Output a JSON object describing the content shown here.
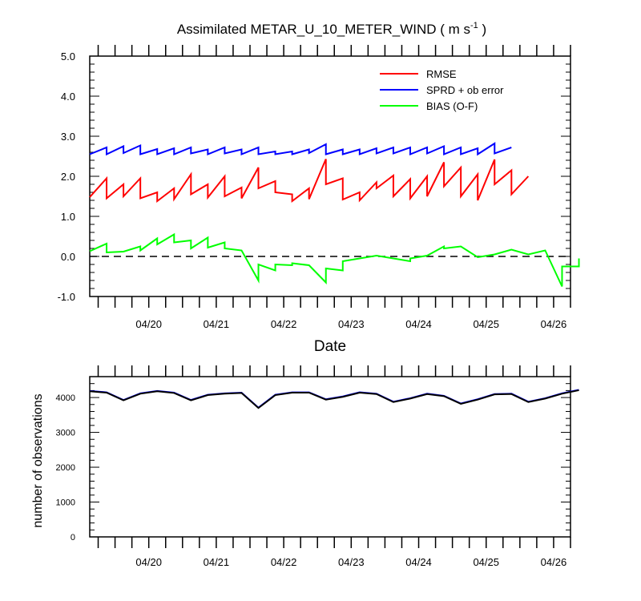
{
  "chart_data": [
    {
      "type": "line",
      "title_main": "Assimilated METAR_U_10_METER_WIND ( m s",
      "title_sup": "-1",
      "title_end": " )",
      "xlabel": "Date",
      "ylabel": "",
      "ylim": [
        -1.0,
        5.0
      ],
      "yticks": [
        "-1.0",
        "0.0",
        "1.0",
        "2.0",
        "3.0",
        "4.0",
        "5.0"
      ],
      "xlim": [
        "04/19 03:00",
        "04/26 06:00"
      ],
      "xticks": [
        "04/20",
        "04/21",
        "04/22",
        "04/23",
        "04/24",
        "04/25",
        "04/26"
      ],
      "legend": "top-right",
      "reference_line": 0.0,
      "series": [
        {
          "name": "RMSE",
          "color": "#ff0000",
          "values": [
            [
              0.0,
              1.48
            ],
            [
              0.25,
              1.95
            ],
            [
              0.25,
              1.45
            ],
            [
              0.5,
              1.8
            ],
            [
              0.5,
              1.5
            ],
            [
              0.75,
              1.95
            ],
            [
              0.75,
              1.45
            ],
            [
              1.0,
              1.6
            ],
            [
              1.0,
              1.38
            ],
            [
              1.25,
              1.7
            ],
            [
              1.25,
              1.43
            ],
            [
              1.5,
              2.05
            ],
            [
              1.5,
              1.55
            ],
            [
              1.75,
              1.8
            ],
            [
              1.75,
              1.47
            ],
            [
              2.0,
              2.0
            ],
            [
              2.0,
              1.5
            ],
            [
              2.25,
              1.72
            ],
            [
              2.25,
              1.45
            ],
            [
              2.5,
              2.22
            ],
            [
              2.5,
              1.7
            ],
            [
              2.75,
              1.88
            ],
            [
              2.75,
              1.6
            ],
            [
              3.0,
              1.55
            ],
            [
              3.0,
              1.38
            ],
            [
              3.25,
              1.7
            ],
            [
              3.25,
              1.43
            ],
            [
              3.5,
              2.43
            ],
            [
              3.5,
              1.8
            ],
            [
              3.75,
              1.95
            ],
            [
              3.75,
              1.42
            ],
            [
              4.0,
              1.6
            ],
            [
              4.0,
              1.4
            ],
            [
              4.25,
              1.85
            ],
            [
              4.25,
              1.7
            ],
            [
              4.5,
              2.02
            ],
            [
              4.5,
              1.5
            ],
            [
              4.75,
              1.93
            ],
            [
              4.75,
              1.45
            ],
            [
              5.0,
              2.0
            ],
            [
              5.0,
              1.5
            ],
            [
              5.25,
              2.35
            ],
            [
              5.25,
              1.75
            ],
            [
              5.5,
              2.22
            ],
            [
              5.5,
              1.5
            ],
            [
              5.75,
              2.05
            ],
            [
              5.75,
              1.4
            ],
            [
              6.0,
              2.42
            ],
            [
              6.0,
              1.8
            ],
            [
              6.25,
              2.15
            ],
            [
              6.25,
              1.55
            ],
            [
              6.5,
              2.0
            ]
          ]
        },
        {
          "name": "SPRD + ob error",
          "color": "#0000ff",
          "values": [
            [
              0.0,
              2.55
            ],
            [
              0.25,
              2.72
            ],
            [
              0.25,
              2.55
            ],
            [
              0.5,
              2.75
            ],
            [
              0.5,
              2.58
            ],
            [
              0.75,
              2.77
            ],
            [
              0.75,
              2.55
            ],
            [
              1.0,
              2.68
            ],
            [
              1.0,
              2.55
            ],
            [
              1.25,
              2.7
            ],
            [
              1.25,
              2.55
            ],
            [
              1.5,
              2.72
            ],
            [
              1.5,
              2.57
            ],
            [
              1.75,
              2.67
            ],
            [
              1.75,
              2.55
            ],
            [
              2.0,
              2.72
            ],
            [
              2.0,
              2.57
            ],
            [
              2.25,
              2.67
            ],
            [
              2.25,
              2.55
            ],
            [
              2.5,
              2.72
            ],
            [
              2.5,
              2.55
            ],
            [
              2.75,
              2.62
            ],
            [
              2.75,
              2.55
            ],
            [
              3.0,
              2.62
            ],
            [
              3.0,
              2.55
            ],
            [
              3.25,
              2.67
            ],
            [
              3.25,
              2.58
            ],
            [
              3.5,
              2.8
            ],
            [
              3.5,
              2.55
            ],
            [
              3.75,
              2.67
            ],
            [
              3.75,
              2.55
            ],
            [
              4.0,
              2.67
            ],
            [
              4.0,
              2.55
            ],
            [
              4.25,
              2.7
            ],
            [
              4.25,
              2.57
            ],
            [
              4.5,
              2.72
            ],
            [
              4.5,
              2.57
            ],
            [
              4.75,
              2.72
            ],
            [
              4.75,
              2.55
            ],
            [
              5.0,
              2.72
            ],
            [
              5.0,
              2.57
            ],
            [
              5.25,
              2.75
            ],
            [
              5.25,
              2.55
            ],
            [
              5.5,
              2.72
            ],
            [
              5.5,
              2.55
            ],
            [
              5.75,
              2.7
            ],
            [
              5.75,
              2.55
            ],
            [
              6.0,
              2.82
            ],
            [
              6.0,
              2.57
            ],
            [
              6.25,
              2.72
            ]
          ]
        },
        {
          "name": "BIAS (O-F)",
          "color": "#00ff00",
          "values": [
            [
              0.0,
              0.13
            ],
            [
              0.25,
              0.32
            ],
            [
              0.25,
              0.1
            ],
            [
              0.5,
              0.12
            ],
            [
              0.75,
              0.25
            ],
            [
              0.75,
              0.15
            ],
            [
              1.0,
              0.45
            ],
            [
              1.0,
              0.3
            ],
            [
              1.25,
              0.55
            ],
            [
              1.25,
              0.35
            ],
            [
              1.5,
              0.4
            ],
            [
              1.5,
              0.2
            ],
            [
              1.75,
              0.47
            ],
            [
              1.75,
              0.22
            ],
            [
              2.0,
              0.35
            ],
            [
              2.0,
              0.2
            ],
            [
              2.25,
              0.15
            ],
            [
              2.5,
              -0.6
            ],
            [
              2.5,
              -0.2
            ],
            [
              2.75,
              -0.35
            ],
            [
              2.75,
              -0.2
            ],
            [
              3.0,
              -0.22
            ],
            [
              3.0,
              -0.17
            ],
            [
              3.25,
              -0.22
            ],
            [
              3.5,
              -0.65
            ],
            [
              3.5,
              -0.3
            ],
            [
              3.75,
              -0.35
            ],
            [
              3.75,
              -0.12
            ],
            [
              4.0,
              -0.05
            ],
            [
              4.25,
              0.02
            ],
            [
              4.5,
              -0.05
            ],
            [
              4.75,
              -0.12
            ],
            [
              4.75,
              -0.05
            ],
            [
              5.0,
              0.02
            ],
            [
              5.25,
              0.25
            ],
            [
              5.25,
              0.2
            ],
            [
              5.5,
              0.25
            ],
            [
              5.75,
              -0.02
            ],
            [
              6.0,
              0.05
            ],
            [
              6.25,
              0.17
            ],
            [
              6.5,
              0.05
            ],
            [
              6.75,
              0.15
            ],
            [
              7.0,
              -0.75
            ],
            [
              7.0,
              -0.25
            ],
            [
              7.25,
              -0.25
            ],
            [
              7.25,
              -0.05
            ]
          ]
        }
      ]
    },
    {
      "type": "line",
      "xlabel": "",
      "ylabel": "number of observations",
      "ylim": [
        0,
        4600
      ],
      "yticks": [
        "0",
        "1000",
        "2000",
        "3000",
        "4000"
      ],
      "xticks": [
        "04/20",
        "04/21",
        "04/22",
        "04/23",
        "04/24",
        "04/25",
        "04/26"
      ],
      "series": [
        {
          "name": "",
          "color": "#0000ff",
          "x": [
            0.0,
            0.25,
            0.5,
            0.75,
            1.0,
            1.25,
            1.5,
            1.75,
            2.0,
            2.25,
            2.5,
            2.75,
            3.0,
            3.25,
            3.5,
            3.75,
            4.0,
            4.25,
            4.5,
            4.75,
            5.0,
            5.25,
            5.5,
            5.75,
            6.0,
            6.25,
            6.5,
            6.75,
            7.0,
            7.25
          ],
          "values": [
            4190,
            4150,
            3930,
            4120,
            4190,
            4140,
            3930,
            4080,
            4120,
            4140,
            3710,
            4080,
            4150,
            4150,
            3950,
            4030,
            4150,
            4110,
            3880,
            3980,
            4110,
            4050,
            3830,
            3950,
            4100,
            4110,
            3880,
            3980,
            4120,
            4220
          ]
        },
        {
          "name": "",
          "color": "#000000",
          "x": [
            0.0,
            0.25,
            0.5,
            0.75,
            1.0,
            1.25,
            1.5,
            1.75,
            2.0,
            2.25,
            2.5,
            2.75,
            3.0,
            3.25,
            3.5,
            3.75,
            4.0,
            4.25,
            4.5,
            4.75,
            5.0,
            5.25,
            5.5,
            5.75,
            6.0,
            6.25,
            6.5,
            6.75,
            7.0,
            7.25
          ],
          "values": [
            4180,
            4140,
            3920,
            4110,
            4180,
            4130,
            3920,
            4070,
            4110,
            4130,
            3700,
            4070,
            4140,
            4140,
            3940,
            4020,
            4140,
            4100,
            3870,
            3970,
            4100,
            4040,
            3820,
            3940,
            4090,
            4100,
            3870,
            3970,
            4110,
            4210
          ]
        }
      ]
    }
  ]
}
